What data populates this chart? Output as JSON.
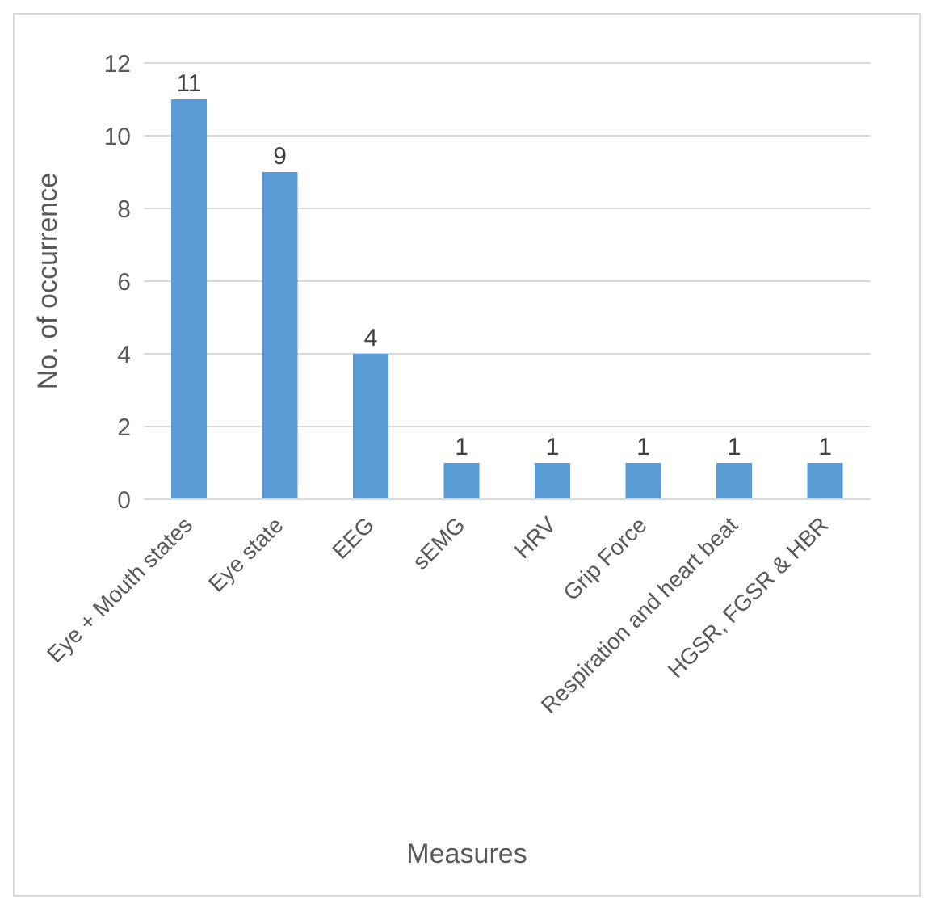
{
  "chart_data": {
    "type": "bar",
    "xlabel": "Measures",
    "ylabel": "No. of occurrence",
    "categories": [
      "Eye + Mouth states",
      "Eye state",
      "EEG",
      "sEMG",
      "HRV",
      "Grip Force",
      "Respiration and heart beat",
      "HGSR, FGSR & HBR"
    ],
    "values": [
      11,
      9,
      4,
      1,
      1,
      1,
      1,
      1
    ],
    "color": "#5b9bd5",
    "ylim": [
      0,
      12
    ],
    "yticks": [
      0,
      2,
      4,
      6,
      8,
      10,
      12
    ],
    "grid": "y",
    "data_labels": true,
    "legend": false
  }
}
